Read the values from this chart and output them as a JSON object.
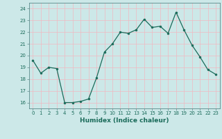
{
  "x": [
    0,
    1,
    2,
    3,
    4,
    5,
    6,
    7,
    8,
    9,
    10,
    11,
    12,
    13,
    14,
    15,
    16,
    17,
    18,
    19,
    20,
    21,
    22,
    23
  ],
  "y": [
    19.6,
    18.5,
    19.0,
    18.9,
    16.0,
    16.0,
    16.1,
    16.3,
    18.1,
    20.3,
    21.0,
    22.0,
    21.9,
    22.2,
    23.1,
    22.4,
    22.5,
    21.9,
    23.7,
    22.2,
    20.9,
    19.9,
    18.8,
    18.4
  ],
  "xlabel": "Humidex (Indice chaleur)",
  "ylim": [
    15.5,
    24.5
  ],
  "xlim": [
    -0.5,
    23.5
  ],
  "yticks": [
    16,
    17,
    18,
    19,
    20,
    21,
    22,
    23,
    24
  ],
  "xticks": [
    0,
    1,
    2,
    3,
    4,
    5,
    6,
    7,
    8,
    9,
    10,
    11,
    12,
    13,
    14,
    15,
    16,
    17,
    18,
    19,
    20,
    21,
    22,
    23
  ],
  "line_color": "#1a6b5a",
  "marker_color": "#1a6b5a",
  "bg_color": "#cce8e8",
  "grid_color": "#f0b8c0",
  "xlabel_fontsize": 6.5,
  "tick_fontsize": 5.0
}
